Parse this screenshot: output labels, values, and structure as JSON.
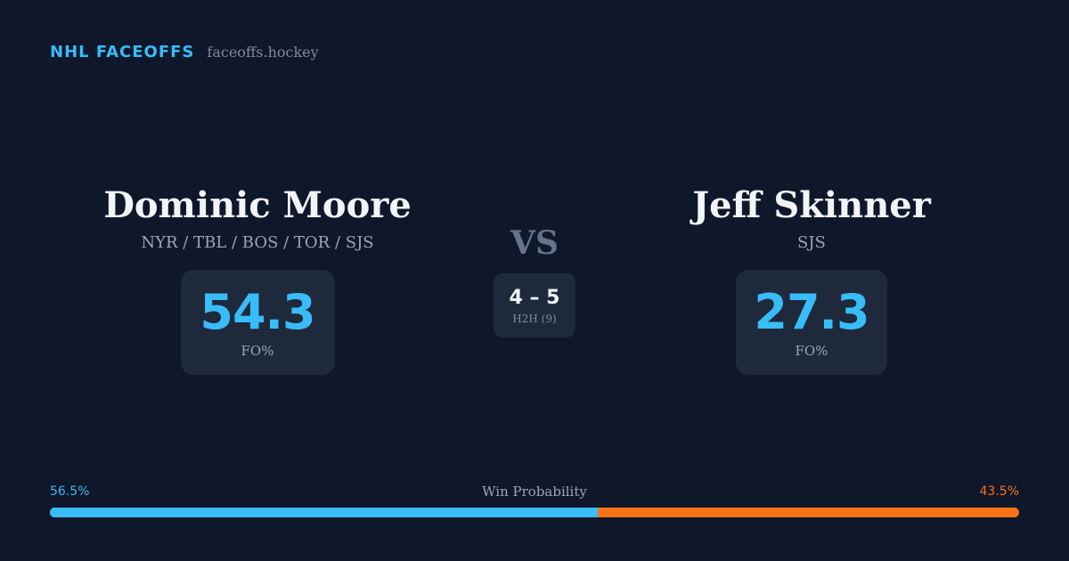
{
  "brand": {
    "name": "NHL FACEOFFS",
    "url": "faceoffs.hockey"
  },
  "player_left": {
    "name": "Dominic Moore",
    "teams": "NYR / TBL / BOS / TOR / SJS",
    "stat_value": "54.3",
    "stat_label": "FO%"
  },
  "player_right": {
    "name": "Jeff Skinner",
    "teams": "SJS",
    "stat_value": "27.3",
    "stat_label": "FO%"
  },
  "versus": {
    "label": "VS",
    "h2h_score": "4 – 5",
    "h2h_label": "H2H (9)"
  },
  "win_probability": {
    "title": "Win Probability",
    "left_label": "56.5%",
    "right_label": "43.5%",
    "left_fraction": 0.565,
    "left_color": "#38bdf8",
    "right_color": "#f97316"
  },
  "colors": {
    "background": "#0f172a",
    "card": "#1e293b",
    "accent": "#38bdf8",
    "opponent": "#f97316"
  }
}
